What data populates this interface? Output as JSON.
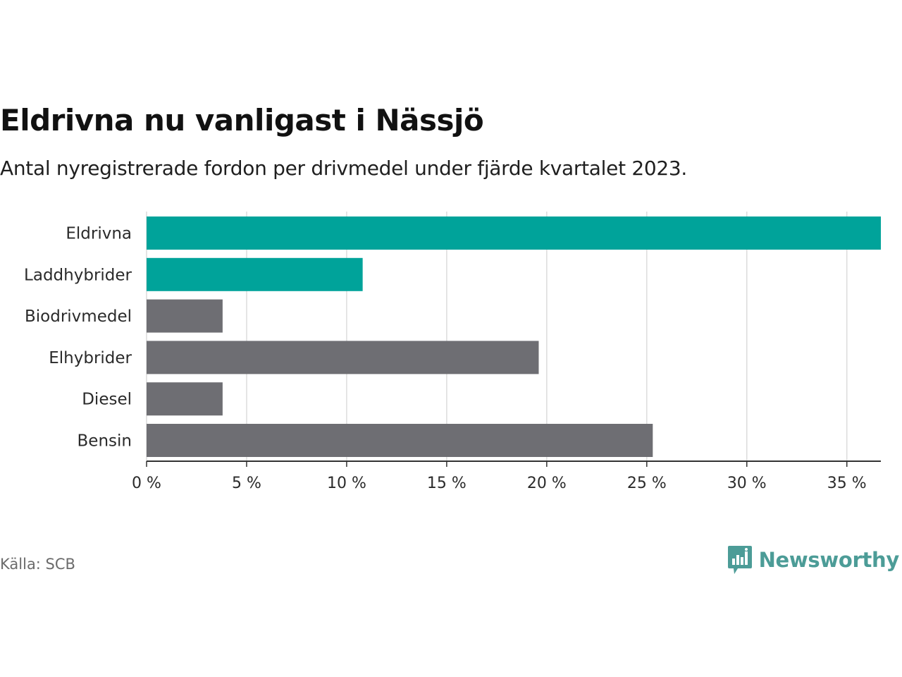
{
  "header": {
    "title": "Eldrivna nu vanligast i Nässjö",
    "subtitle": "Antal nyregistrerade fordon per drivmedel under fjärde kvartalet 2023."
  },
  "footer": {
    "source": "Källa: SCB",
    "brand": "Newsworthy"
  },
  "colors": {
    "highlight": "#00a39a",
    "default": "#6e6e73",
    "grid": "#dcdcdc",
    "axis": "#333333",
    "brand": "#4c9c97"
  },
  "chart_data": {
    "type": "bar",
    "orientation": "horizontal",
    "title": "Eldrivna nu vanligast i Nässjö",
    "subtitle": "Antal nyregistrerade fordon per drivmedel under fjärde kvartalet 2023.",
    "categories": [
      "Eldrivna",
      "Laddhybrider",
      "Biodrivmedel",
      "Elhybrider",
      "Diesel",
      "Bensin"
    ],
    "values": [
      36.7,
      10.8,
      3.8,
      19.6,
      3.8,
      25.3
    ],
    "highlighted": [
      true,
      true,
      false,
      false,
      false,
      false
    ],
    "unit": "%",
    "xlim": [
      0,
      36.7
    ],
    "xticks": [
      0,
      5,
      10,
      15,
      20,
      25,
      30,
      35
    ],
    "xtick_labels": [
      "0 %",
      "5 %",
      "10 %",
      "15 %",
      "20 %",
      "25 %",
      "30 %",
      "35 %"
    ],
    "grid": true,
    "xlabel": "",
    "ylabel": ""
  }
}
